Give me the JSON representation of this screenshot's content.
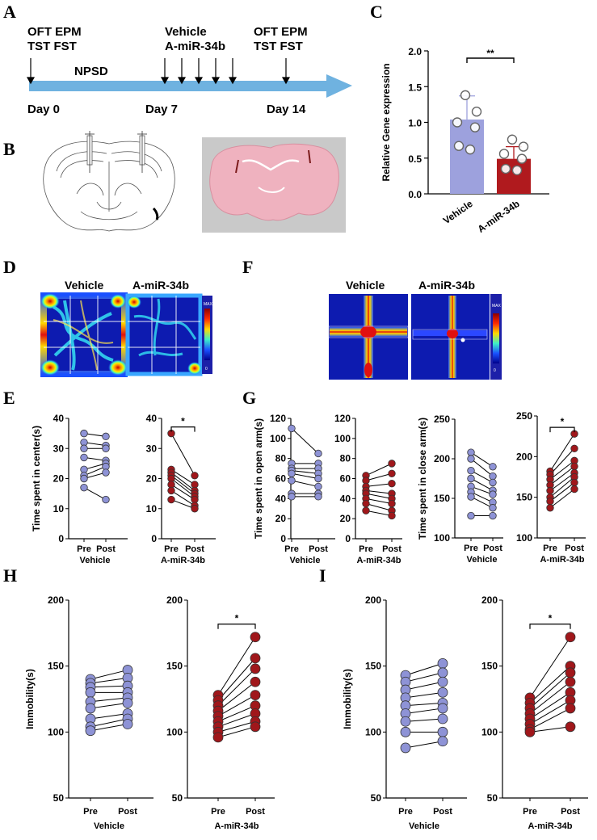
{
  "panels": {
    "A": "A",
    "B": "B",
    "C": "C",
    "D": "D",
    "E": "E",
    "F": "F",
    "G": "G",
    "H": "H",
    "I": "I"
  },
  "colors": {
    "vehicle": "#8e93d6",
    "vehicle_bar": "#9da1dd",
    "amir": "#a0171b",
    "amir_bar": "#b01a1e",
    "arrow": "#6fb2e0"
  },
  "timeline": {
    "tests_start_line1": "OFT EPM",
    "tests_start_line2": "TST  FST",
    "treat_line1": "Vehicle",
    "treat_line2": "A-miR-34b",
    "tests_end_line1": "OFT EPM",
    "tests_end_line2": "TST  FST",
    "stress": "NPSD",
    "day0": "Day 0",
    "day7": "Day 7",
    "day14": "Day 14"
  },
  "heatmaps": {
    "D": {
      "vehicle_label": "Vehicle",
      "amir_label": "A-miR-34b",
      "scale_max": "MAX",
      "scale_min": "0"
    },
    "F": {
      "vehicle_label": "Vehicle",
      "amir_label": "A-miR-34b",
      "scale_max": "MAX",
      "scale_min": "0"
    }
  },
  "chart_data": [
    {
      "id": "C",
      "type": "bar",
      "title": "",
      "ylabel": "Relative Gene expression",
      "categories": [
        "Vehicle",
        "A-miR-34b"
      ],
      "values": [
        1.04,
        0.49
      ],
      "errors": [
        0.33,
        0.17
      ],
      "ylim": [
        0,
        2.0
      ],
      "yticks": [
        "0.0",
        "0.5",
        "1.0",
        "1.5",
        "2.0"
      ],
      "points": [
        [
          1.38,
          1.15,
          1.0,
          0.93,
          0.67,
          0.62
        ],
        [
          0.76,
          0.66,
          0.56,
          0.49,
          0.35,
          0.33
        ]
      ],
      "significance": "**"
    },
    {
      "id": "E1",
      "type": "scatter",
      "ylabel": "Time spent in center(s)",
      "group": "Vehicle",
      "xlabels": [
        "Pre",
        "Post"
      ],
      "ylim": [
        0,
        40
      ],
      "yticks": [
        "0",
        "10",
        "20",
        "30",
        "40"
      ],
      "pre": [
        35,
        32,
        30,
        27,
        23,
        21,
        20,
        17
      ],
      "post": [
        34,
        31,
        30,
        26,
        25,
        24,
        22,
        13
      ],
      "significance": ""
    },
    {
      "id": "E2",
      "type": "scatter",
      "ylabel": "",
      "group": "A-miR-34b",
      "xlabels": [
        "Pre",
        "Post"
      ],
      "ylim": [
        0,
        40
      ],
      "yticks": [
        "0",
        "10",
        "20",
        "30",
        "40"
      ],
      "pre": [
        35,
        23,
        22,
        21,
        20,
        18,
        16,
        13
      ],
      "post": [
        21,
        18,
        16,
        15,
        14,
        13,
        11,
        10
      ],
      "significance": "*"
    },
    {
      "id": "G1",
      "type": "scatter",
      "ylabel": "Time spent in open arm(s)",
      "group": "Vehicle",
      "xlabels": [
        "Pre",
        "Post"
      ],
      "ylim": [
        0,
        120
      ],
      "yticks": [
        "0",
        "20",
        "40",
        "60",
        "80",
        "100",
        "120"
      ],
      "pre": [
        110,
        75,
        70,
        68,
        65,
        58,
        45,
        42
      ],
      "post": [
        85,
        75,
        70,
        65,
        60,
        52,
        45,
        42
      ],
      "significance": ""
    },
    {
      "id": "G2",
      "type": "scatter",
      "ylabel": "",
      "group": "A-miR-34b",
      "xlabels": [
        "Pre",
        "Post"
      ],
      "ylim": [
        0,
        120
      ],
      "yticks": [
        "0",
        "20",
        "40",
        "60",
        "80",
        "100",
        "120"
      ],
      "pre": [
        63,
        58,
        52,
        48,
        45,
        40,
        35,
        28
      ],
      "post": [
        75,
        65,
        55,
        45,
        40,
        35,
        28,
        23
      ],
      "significance": ""
    },
    {
      "id": "G3",
      "type": "scatter",
      "ylabel": "Time spent in close arm(s)",
      "group": "Vehicle",
      "xlabels": [
        "Pre",
        "Post"
      ],
      "ylim": [
        100,
        250
      ],
      "yticks": [
        "100",
        "150",
        "200",
        "250"
      ],
      "pre": [
        208,
        200,
        185,
        175,
        165,
        158,
        152,
        128
      ],
      "post": [
        190,
        178,
        170,
        160,
        155,
        145,
        138,
        128
      ],
      "significance": ""
    },
    {
      "id": "G4",
      "type": "scatter",
      "ylabel": "",
      "group": "A-miR-34b",
      "xlabels": [
        "Pre",
        "Post"
      ],
      "ylim": [
        100,
        250
      ],
      "yticks": [
        "100",
        "150",
        "200",
        "250"
      ],
      "pre": [
        182,
        178,
        172,
        165,
        158,
        150,
        145,
        137
      ],
      "post": [
        228,
        210,
        195,
        188,
        180,
        175,
        168,
        160
      ],
      "significance": "*"
    },
    {
      "id": "H1",
      "type": "scatter",
      "ylabel": "Immobility(s)",
      "group": "Vehicle",
      "xlabels": [
        "Pre",
        "Post"
      ],
      "ylim": [
        50,
        200
      ],
      "yticks": [
        "50",
        "100",
        "150",
        "200"
      ],
      "pre": [
        140,
        137,
        134,
        130,
        123,
        118,
        110,
        104,
        101
      ],
      "post": [
        147,
        141,
        135,
        130,
        126,
        122,
        114,
        110,
        106
      ],
      "significance": ""
    },
    {
      "id": "H2",
      "type": "scatter",
      "ylabel": "",
      "group": "A-miR-34b",
      "xlabels": [
        "Pre",
        "Post"
      ],
      "ylim": [
        50,
        200
      ],
      "yticks": [
        "50",
        "100",
        "150",
        "200"
      ],
      "pre": [
        128,
        124,
        120,
        116,
        112,
        108,
        104,
        100,
        96
      ],
      "post": [
        172,
        156,
        148,
        138,
        128,
        120,
        114,
        108,
        104
      ],
      "significance": "*"
    },
    {
      "id": "I1",
      "type": "scatter",
      "ylabel": "Immobility(s)",
      "group": "Vehicle",
      "xlabels": [
        "Pre",
        "Post"
      ],
      "ylim": [
        50,
        200
      ],
      "yticks": [
        "50",
        "100",
        "150",
        "200"
      ],
      "pre": [
        143,
        138,
        132,
        126,
        120,
        114,
        108,
        100,
        88
      ],
      "post": [
        152,
        145,
        138,
        130,
        122,
        118,
        110,
        100,
        93
      ],
      "significance": ""
    },
    {
      "id": "I2",
      "type": "scatter",
      "ylabel": "",
      "group": "A-miR-34b",
      "xlabels": [
        "Pre",
        "Post"
      ],
      "ylim": [
        50,
        200
      ],
      "yticks": [
        "50",
        "100",
        "150",
        "200"
      ],
      "pre": [
        126,
        122,
        118,
        114,
        110,
        106,
        102,
        100
      ],
      "post": [
        172,
        150,
        145,
        138,
        130,
        124,
        118,
        104
      ],
      "significance": "*"
    }
  ]
}
